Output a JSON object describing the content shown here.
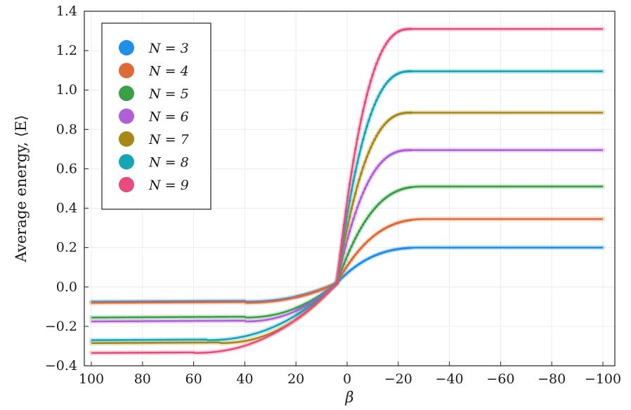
{
  "chart_data": {
    "type": "line",
    "title": "",
    "xlabel": "β",
    "ylabel": "Average energy, ⟨E⟩",
    "xlim": [
      100,
      -100
    ],
    "ylim": [
      -0.4,
      1.4
    ],
    "x_ticks": [
      100,
      80,
      60,
      40,
      20,
      0,
      -20,
      -40,
      -60,
      -80,
      -100
    ],
    "x_tick_labels": [
      "100",
      "80",
      "60",
      "40",
      "20",
      "0",
      "−20",
      "−40",
      "−60",
      "−80",
      "−100"
    ],
    "y_ticks": [
      -0.4,
      -0.2,
      0.0,
      0.2,
      0.4,
      0.6,
      0.8,
      1.0,
      1.2,
      1.4
    ],
    "y_tick_labels": [
      "−0.4",
      "−0.2",
      "0.0",
      "0.2",
      "0.4",
      "0.6",
      "0.8",
      "1.0",
      "1.2",
      "1.4"
    ],
    "grid": true,
    "legend_position": "top-left",
    "series": [
      {
        "name": "N = 3",
        "n": 3,
        "color": "#1f8fe8",
        "low": -0.075,
        "high": 0.2,
        "knee_low": 40,
        "knee_high": -30
      },
      {
        "name": "N = 4",
        "n": 4,
        "color": "#e06a37",
        "low": -0.08,
        "high": 0.345,
        "knee_low": 40,
        "knee_high": -32
      },
      {
        "name": "N = 5",
        "n": 5,
        "color": "#3aa047",
        "low": -0.155,
        "high": 0.51,
        "knee_low": 40,
        "knee_high": -30
      },
      {
        "name": "N = 6",
        "n": 6,
        "color": "#b15fd6",
        "low": -0.175,
        "high": 0.695,
        "knee_low": 40,
        "knee_high": -25
      },
      {
        "name": "N = 7",
        "n": 7,
        "color": "#a88714",
        "low": -0.285,
        "high": 0.885,
        "knee_low": 50,
        "knee_high": -25
      },
      {
        "name": "N = 8",
        "n": 8,
        "color": "#16a5b4",
        "low": -0.27,
        "high": 1.095,
        "knee_low": 55,
        "knee_high": -25
      },
      {
        "name": "N = 9",
        "n": 9,
        "color": "#e74c7c",
        "low": -0.335,
        "high": 1.31,
        "knee_low": 60,
        "knee_high": -25
      }
    ],
    "annotations": []
  }
}
